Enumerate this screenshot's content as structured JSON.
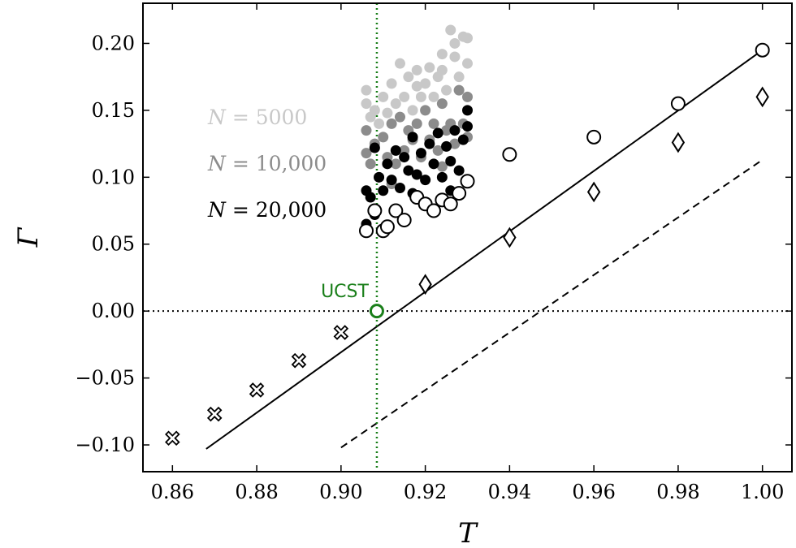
{
  "chart_data": {
    "type": "scatter",
    "xlabel": "T",
    "ylabel": "Γ",
    "xlim": [
      0.853,
      1.007
    ],
    "ylim": [
      -0.12,
      0.23
    ],
    "x_ticks": [
      0.86,
      0.88,
      0.9,
      0.92,
      0.94,
      0.96,
      0.98,
      1.0
    ],
    "x_tick_labels": [
      "0.86",
      "0.88",
      "0.90",
      "0.92",
      "0.94",
      "0.96",
      "0.98",
      "1.00"
    ],
    "y_ticks": [
      -0.1,
      -0.05,
      0.0,
      0.05,
      0.1,
      0.15,
      0.2
    ],
    "y_tick_labels": [
      "−0.10",
      "−0.05",
      "0.00",
      "0.05",
      "0.10",
      "0.15",
      "0.20"
    ],
    "grid": false,
    "colors": {
      "n5000": "#c8c8c8",
      "n10000": "#8c8c8c",
      "n20000": "#000000",
      "ucst": "#1a7f1a"
    },
    "legend": [
      {
        "var": "N",
        "eq": " = ",
        "num": "5000",
        "color": "#c8c8c8"
      },
      {
        "var": "N",
        "eq": " = ",
        "num": "10,000",
        "color": "#8c8c8c"
      },
      {
        "var": "N",
        "eq": " = ",
        "num": "20,000",
        "color": "#000000"
      }
    ],
    "ucst_label": "UCST",
    "ucst_point": {
      "x": 0.9085,
      "y": 0.0
    },
    "series": [
      {
        "marker": "circle-open",
        "points": [
          [
            0.906,
            0.06
          ],
          [
            0.908,
            0.075
          ],
          [
            0.91,
            0.06
          ],
          [
            0.911,
            0.063
          ],
          [
            0.913,
            0.075
          ],
          [
            0.915,
            0.068
          ],
          [
            0.918,
            0.085
          ],
          [
            0.92,
            0.08
          ],
          [
            0.922,
            0.075
          ],
          [
            0.924,
            0.083
          ],
          [
            0.926,
            0.08
          ],
          [
            0.928,
            0.088
          ],
          [
            0.93,
            0.097
          ],
          [
            0.94,
            0.117
          ],
          [
            0.96,
            0.13
          ],
          [
            0.98,
            0.155
          ],
          [
            1.0,
            0.195
          ]
        ]
      },
      {
        "marker": "diamond-open",
        "points": [
          [
            0.92,
            0.02
          ],
          [
            0.94,
            0.055
          ],
          [
            0.96,
            0.089
          ],
          [
            0.98,
            0.126
          ],
          [
            1.0,
            0.16
          ]
        ]
      },
      {
        "marker": "cross-open",
        "points": [
          [
            0.86,
            -0.095
          ],
          [
            0.87,
            -0.077
          ],
          [
            0.88,
            -0.059
          ],
          [
            0.89,
            -0.037
          ],
          [
            0.9,
            -0.016
          ]
        ]
      },
      {
        "marker": "dot",
        "color": "#c8c8c8",
        "points": [
          [
            0.906,
            0.165
          ],
          [
            0.906,
            0.155
          ],
          [
            0.907,
            0.145
          ],
          [
            0.908,
            0.15
          ],
          [
            0.909,
            0.14
          ],
          [
            0.91,
            0.16
          ],
          [
            0.911,
            0.148
          ],
          [
            0.912,
            0.17
          ],
          [
            0.913,
            0.155
          ],
          [
            0.914,
            0.185
          ],
          [
            0.915,
            0.16
          ],
          [
            0.916,
            0.175
          ],
          [
            0.917,
            0.15
          ],
          [
            0.918,
            0.18
          ],
          [
            0.919,
            0.16
          ],
          [
            0.92,
            0.17
          ],
          [
            0.921,
            0.182
          ],
          [
            0.922,
            0.16
          ],
          [
            0.923,
            0.175
          ],
          [
            0.924,
            0.18
          ],
          [
            0.925,
            0.165
          ],
          [
            0.926,
            0.21
          ],
          [
            0.927,
            0.19
          ],
          [
            0.928,
            0.175
          ],
          [
            0.929,
            0.205
          ],
          [
            0.93,
            0.185
          ],
          [
            0.93,
            0.204
          ],
          [
            0.927,
            0.2
          ],
          [
            0.924,
            0.192
          ],
          [
            0.918,
            0.168
          ]
        ]
      },
      {
        "marker": "dot",
        "color": "#8c8c8c",
        "points": [
          [
            0.906,
            0.135
          ],
          [
            0.906,
            0.118
          ],
          [
            0.907,
            0.11
          ],
          [
            0.908,
            0.125
          ],
          [
            0.909,
            0.1
          ],
          [
            0.91,
            0.13
          ],
          [
            0.911,
            0.115
          ],
          [
            0.912,
            0.14
          ],
          [
            0.913,
            0.11
          ],
          [
            0.914,
            0.145
          ],
          [
            0.915,
            0.12
          ],
          [
            0.916,
            0.135
          ],
          [
            0.917,
            0.128
          ],
          [
            0.918,
            0.14
          ],
          [
            0.919,
            0.115
          ],
          [
            0.92,
            0.15
          ],
          [
            0.921,
            0.128
          ],
          [
            0.922,
            0.14
          ],
          [
            0.923,
            0.12
          ],
          [
            0.924,
            0.155
          ],
          [
            0.925,
            0.135
          ],
          [
            0.926,
            0.14
          ],
          [
            0.927,
            0.125
          ],
          [
            0.928,
            0.165
          ],
          [
            0.929,
            0.14
          ],
          [
            0.93,
            0.13
          ],
          [
            0.93,
            0.16
          ],
          [
            0.924,
            0.108
          ],
          [
            0.912,
            0.095
          ]
        ]
      },
      {
        "marker": "dot",
        "color": "#000000",
        "points": [
          [
            0.906,
            0.065
          ],
          [
            0.906,
            0.09
          ],
          [
            0.907,
            0.085
          ],
          [
            0.908,
            0.122
          ],
          [
            0.909,
            0.1
          ],
          [
            0.91,
            0.09
          ],
          [
            0.911,
            0.11
          ],
          [
            0.912,
            0.098
          ],
          [
            0.913,
            0.12
          ],
          [
            0.914,
            0.092
          ],
          [
            0.915,
            0.115
          ],
          [
            0.916,
            0.105
          ],
          [
            0.917,
            0.13
          ],
          [
            0.918,
            0.102
          ],
          [
            0.919,
            0.118
          ],
          [
            0.92,
            0.098
          ],
          [
            0.921,
            0.125
          ],
          [
            0.922,
            0.11
          ],
          [
            0.923,
            0.133
          ],
          [
            0.924,
            0.1
          ],
          [
            0.925,
            0.123
          ],
          [
            0.926,
            0.112
          ],
          [
            0.927,
            0.135
          ],
          [
            0.928,
            0.105
          ],
          [
            0.929,
            0.128
          ],
          [
            0.93,
            0.15
          ],
          [
            0.93,
            0.138
          ],
          [
            0.908,
            0.072
          ],
          [
            0.917,
            0.088
          ],
          [
            0.926,
            0.09
          ]
        ]
      }
    ],
    "lines": [
      {
        "style": "solid",
        "points": [
          [
            0.868,
            -0.103
          ],
          [
            1.0,
            0.195
          ]
        ]
      },
      {
        "style": "dashed",
        "points": [
          [
            0.9,
            -0.102
          ],
          [
            1.0,
            0.113
          ]
        ]
      },
      {
        "style": "dotted-horizontal",
        "y": 0.0
      },
      {
        "style": "dotted-vertical",
        "x": 0.9085,
        "color": "#1a7f1a"
      }
    ]
  }
}
